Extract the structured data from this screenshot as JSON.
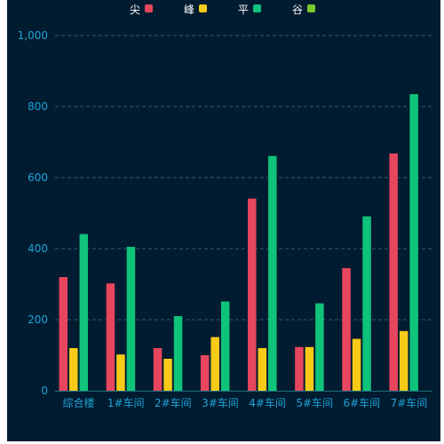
{
  "chart_data": {
    "type": "bar",
    "categories": [
      "综合楼",
      "1#车间",
      "2#车间",
      "3#车间",
      "4#车间",
      "5#车间",
      "6#车间",
      "7#车间"
    ],
    "series": [
      {
        "name": "尖",
        "color": "#e8455e",
        "values": [
          320,
          302,
          120,
          100,
          541,
          123,
          345,
          668
        ]
      },
      {
        "name": "峰",
        "color": "#f7ca18",
        "values": [
          120,
          102,
          90,
          151,
          120,
          123,
          146,
          168
        ]
      },
      {
        "name": "平",
        "color": "#0fc37a",
        "values": [
          441,
          405,
          210,
          251,
          661,
          246,
          491,
          835
        ]
      },
      {
        "name": "谷",
        "color": "#7dc82b",
        "values": [
          0,
          0,
          0,
          0,
          0,
          0,
          0,
          0
        ]
      }
    ],
    "y_ticks": [
      "0",
      "200",
      "400",
      "600",
      "800",
      "1,000"
    ],
    "ylim": [
      0,
      1000
    ],
    "grid": true,
    "legend_position": "top-center"
  }
}
